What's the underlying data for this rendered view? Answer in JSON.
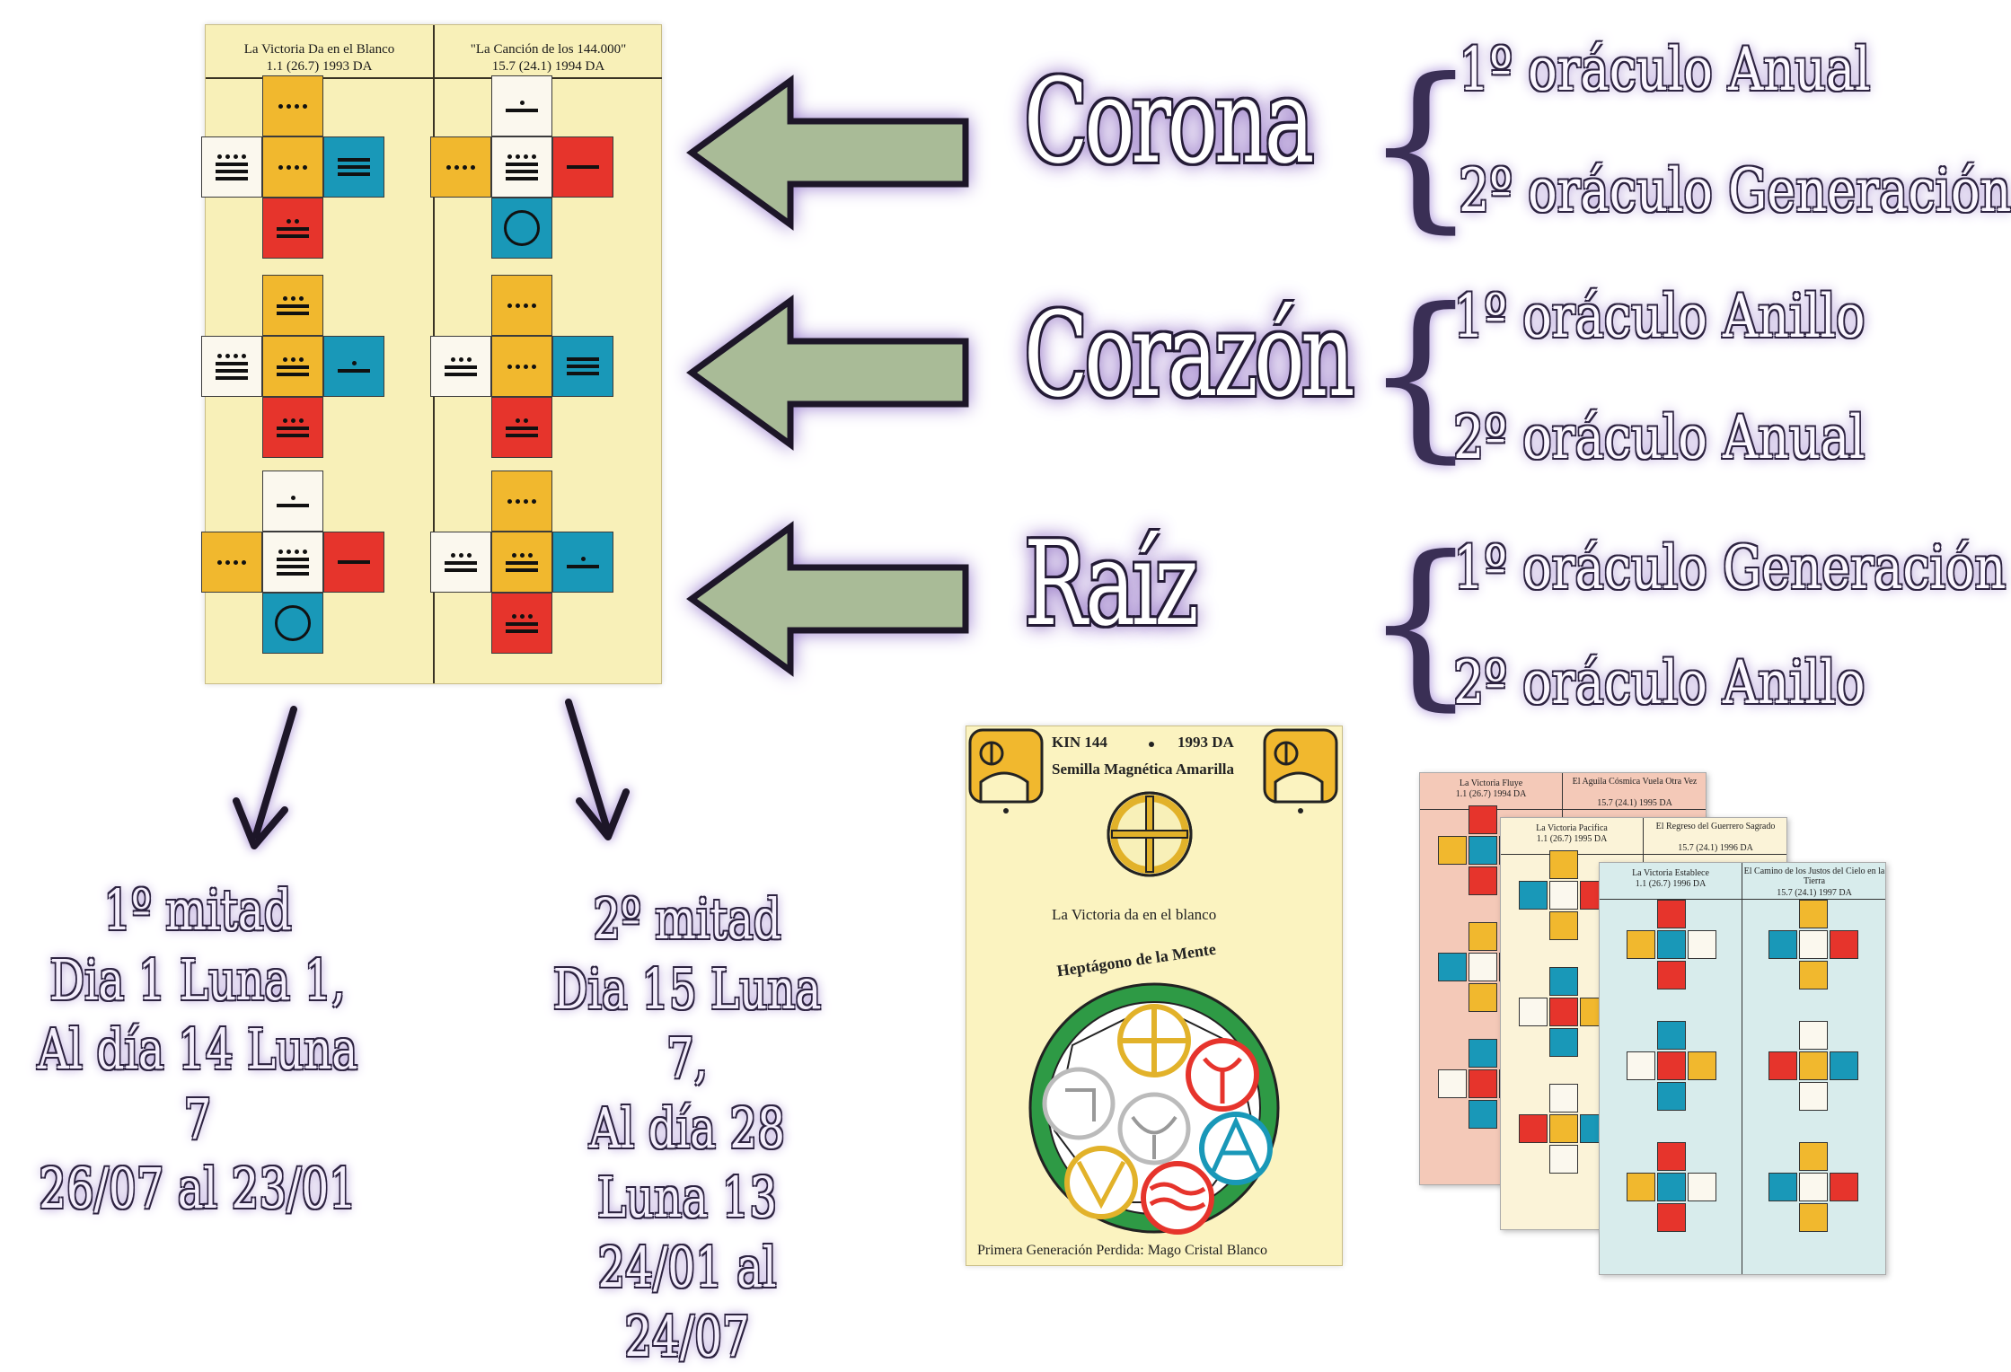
{
  "main_card": {
    "left_title": "La Victoria Da en el Blanco",
    "left_date": "1.1 (26.7) 1993 DA",
    "right_title": "\"La Canción de los 144.000\"",
    "right_date": "15.7 (24.1) 1994 DA"
  },
  "rows": [
    {
      "word": "Corona",
      "items": [
        "1º oráculo Anual",
        "2º oráculo Generación"
      ]
    },
    {
      "word": "Corazón",
      "items": [
        "1º oráculo Anillo",
        "2º oráculo Anual"
      ]
    },
    {
      "word": "Raíz",
      "items": [
        "1º oráculo Generación",
        "2º oráculo Anillo"
      ]
    }
  ],
  "halves": [
    {
      "title": "1º mitad",
      "line1": "Dia 1 Luna 1,",
      "line2": "Al día 14 Luna 7",
      "line3": "26/07 al 23/01"
    },
    {
      "title": "2º mitad",
      "line1": "Dia 15 Luna 7,",
      "line2": "Al día 28 Luna 13",
      "line3": "24/01 al 24/07"
    }
  ],
  "kin_card": {
    "kin": "KIN 144",
    "year": "1993 DA",
    "name": "Semilla Magnética Amarilla",
    "subtitle": "La Victoria da en el blanco",
    "heptagon": "Heptágono de la Mente",
    "footer": "Primera Generación Perdida: Mago Cristal Blanco"
  },
  "stack_cards": [
    {
      "left_title": "La Victoria Fluye",
      "left_date": "1.1 (26.7) 1994 DA",
      "right_title": "El Aguila Cósmica Vuela Otra Vez",
      "right_date": "15.7 (24.1) 1995 DA"
    },
    {
      "left_title": "La Victoria Pacifica",
      "left_date": "1.1 (26.7) 1995 DA",
      "right_title": "El Regreso del Guerrero Sagrado",
      "right_date": "15.7 (24.1) 1996 DA"
    },
    {
      "left_title": "La Victoria Establece",
      "left_date": "1.1 (26.7) 1996 DA",
      "right_title": "El Camino de los Justos del Cielo en la Tierra",
      "right_date": "15.7 (24.1) 1997 DA"
    }
  ],
  "colors": {
    "yellow": "#f1b82e",
    "red": "#e6342c",
    "blue": "#1998b8",
    "white": "#fbf8ee",
    "arrow": "#a9bb97",
    "glow": "#8c6cc4"
  }
}
